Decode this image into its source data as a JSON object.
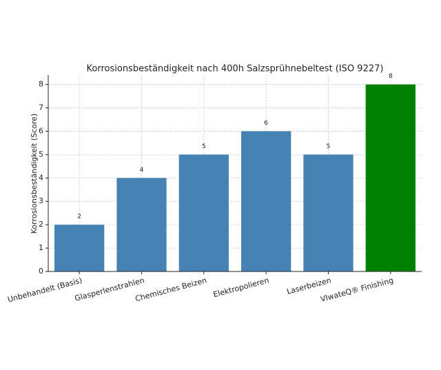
{
  "chart_data": {
    "type": "bar",
    "title": "Korrosionsbeständigkeit nach 400h Salzsprühnebeltest (ISO 9227)",
    "y_label": "Korrosionsbeständigkeit (Score)",
    "categories": [
      "Unbehandelt (Basis)",
      "Glasperlenstrahlen",
      "Chemisches Beizen",
      "Elektropolieren",
      "Laserbeizen",
      "VIwateQ® Finishing"
    ],
    "values": [
      2,
      4,
      5,
      6,
      5,
      8
    ],
    "colors": [
      "#4682b4",
      "#4682b4",
      "#4682b4",
      "#4682b4",
      "#4682b4",
      "#008000"
    ],
    "ylim": [
      0,
      8.4
    ],
    "yticks": [
      0,
      1,
      2,
      3,
      4,
      5,
      6,
      7,
      8
    ],
    "grid": true
  }
}
